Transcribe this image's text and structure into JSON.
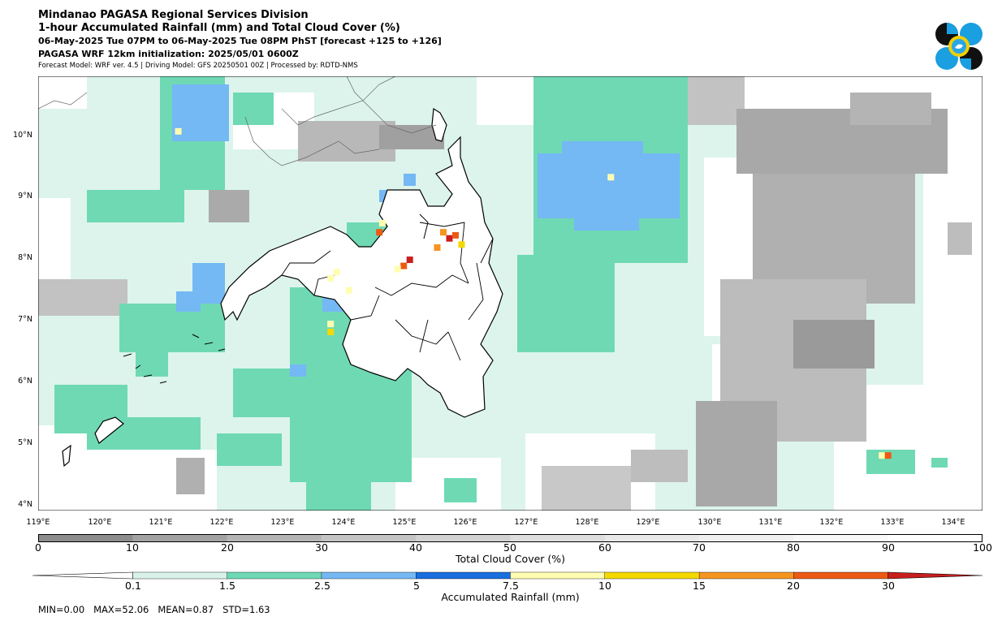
{
  "header": {
    "title": "Mindanao PAGASA Regional Services Division",
    "subtitle": "1-hour Accumulated Rainfall (mm) and Total Cloud Cover (%)",
    "valid_time": "06-May-2025 Tue 07PM to 06-May-2025 Tue 08PM PhST [forecast +125 to +126]",
    "init": "PAGASA WRF 12km initialization: 2025/05/01 0600Z",
    "model_info": "Forecast Model: WRF ver. 4.5 | Driving Model: GFS 20250501 00Z | Processed by: RDTD-NMS"
  },
  "map": {
    "lon_range": [
      119,
      134.5
    ],
    "lat_range": [
      3.9,
      11.0
    ],
    "lat_labels": [
      "10°N",
      "9°N",
      "8°N",
      "7°N",
      "6°N",
      "5°N",
      "4°N"
    ],
    "lon_labels": [
      "119°E",
      "120°E",
      "121°E",
      "122°E",
      "123°E",
      "124°E",
      "125°E",
      "126°E",
      "127°E",
      "128°E",
      "129°E",
      "130°E",
      "131°E",
      "132°E",
      "133°E",
      "134°E"
    ],
    "rain_cells": [
      {
        "lon": 125.75,
        "lat": 8.35,
        "mm": 30
      },
      {
        "lon": 125.85,
        "lat": 8.4,
        "mm": 20
      },
      {
        "lon": 125.65,
        "lat": 8.45,
        "mm": 15
      },
      {
        "lon": 125.95,
        "lat": 8.25,
        "mm": 10
      },
      {
        "lon": 125.55,
        "lat": 8.2,
        "mm": 15
      },
      {
        "lon": 125.1,
        "lat": 8.0,
        "mm": 30
      },
      {
        "lon": 125.0,
        "lat": 7.9,
        "mm": 20
      },
      {
        "lon": 124.9,
        "lat": 7.85,
        "mm": 7.5
      },
      {
        "lon": 124.6,
        "lat": 8.45,
        "mm": 20
      },
      {
        "lon": 124.65,
        "lat": 8.6,
        "mm": 7.5
      },
      {
        "lon": 123.9,
        "lat": 7.8,
        "mm": 7.5
      },
      {
        "lon": 123.8,
        "lat": 7.7,
        "mm": 7.5
      },
      {
        "lon": 124.1,
        "lat": 7.5,
        "mm": 7.5
      },
      {
        "lon": 123.8,
        "lat": 6.95,
        "mm": 7.5
      },
      {
        "lon": 123.8,
        "lat": 6.82,
        "mm": 10
      },
      {
        "lon": 128.4,
        "lat": 9.35,
        "mm": 7.5
      },
      {
        "lon": 132.85,
        "lat": 4.8,
        "mm": 7.5
      },
      {
        "lon": 132.95,
        "lat": 4.8,
        "mm": 20
      },
      {
        "lon": 121.3,
        "lat": 10.1,
        "mm": 7.5
      }
    ]
  },
  "cloud_colorbar": {
    "label": "Total Cloud Cover (%)",
    "ticks": [
      "0",
      "10",
      "20",
      "30",
      "40",
      "50",
      "60",
      "70",
      "80",
      "90",
      "100"
    ],
    "colors": [
      "#8c8c8c",
      "#a2a2a2",
      "#b4b4b4",
      "#c4c4c4",
      "#d2d2d2",
      "#dedede",
      "#e8e8e8",
      "#f0f0f0",
      "#f8f8f8",
      "#ffffff"
    ]
  },
  "rain_colorbar": {
    "label": "Accumulated Rainfall (mm)",
    "ticks": [
      "0.1",
      "1.5",
      "2.5",
      "5",
      "7.5",
      "10",
      "15",
      "20",
      "30"
    ],
    "colors": [
      "#ffffff",
      "#d9f3ea",
      "#6fd9b4",
      "#74b8f4",
      "#1a6fe0",
      "#fffdb0",
      "#f3d900",
      "#f5941f",
      "#ec5a14",
      "#c81e1e"
    ]
  },
  "stats": "MIN=0.00   MAX=52.06   MEAN=0.87   STD=1.63"
}
